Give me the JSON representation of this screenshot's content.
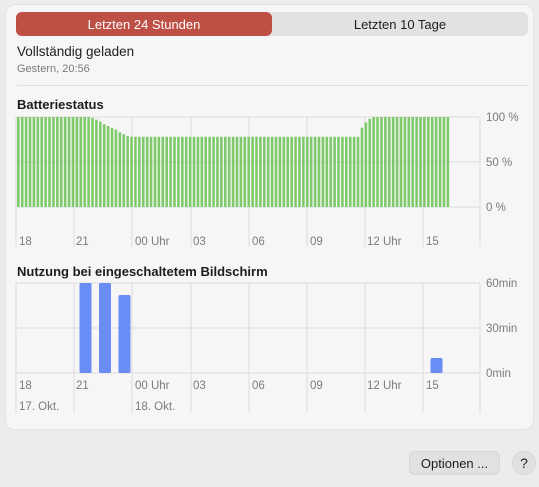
{
  "tabs": [
    {
      "label": "Letzten 24 Stunden",
      "active": true
    },
    {
      "label": "Letzten 10 Tage",
      "active": false
    }
  ],
  "status": {
    "title": "Vollständig geladen",
    "time": "Gestern, 20:56"
  },
  "colors": {
    "active_tab": "#be4f45",
    "battery": "#7ec96a",
    "screen": "#6a8df5",
    "grid": "#dcdcdc",
    "text_muted": "#7b7b7b"
  },
  "chart_data": [
    {
      "type": "bar",
      "title": "Batteriestatus",
      "ylim": [
        0,
        100
      ],
      "y_ticks": [
        "100 %",
        "50 %",
        "0 %"
      ],
      "x_labels": [
        "18",
        "21",
        "00 Uhr",
        "03",
        "06",
        "09",
        "12 Uhr",
        "15"
      ],
      "values": [
        100,
        100,
        100,
        100,
        100,
        100,
        100,
        100,
        100,
        100,
        100,
        100,
        100,
        100,
        100,
        100,
        100,
        100,
        100,
        99,
        97,
        95,
        92,
        90,
        88,
        86,
        83,
        81,
        79,
        78,
        78,
        78,
        78,
        78,
        78,
        78,
        78,
        78,
        78,
        78,
        78,
        78,
        78,
        78,
        78,
        78,
        78,
        78,
        78,
        78,
        78,
        78,
        78,
        78,
        78,
        78,
        78,
        78,
        78,
        78,
        78,
        78,
        78,
        78,
        78,
        78,
        78,
        78,
        78,
        78,
        78,
        78,
        78,
        78,
        78,
        78,
        78,
        78,
        78,
        78,
        78,
        78,
        78,
        78,
        78,
        78,
        78,
        78,
        88,
        94,
        98,
        100,
        100,
        100,
        100,
        100,
        100,
        100,
        100,
        100,
        100,
        100,
        100,
        100,
        100,
        100,
        100,
        100,
        100,
        100,
        100
      ]
    },
    {
      "type": "bar",
      "title": "Nutzung bei eingeschaltetem Bildschirm",
      "ylim": [
        0,
        60
      ],
      "y_ticks": [
        "60min",
        "30min",
        "0min"
      ],
      "x_labels": [
        "18",
        "21",
        "00 Uhr",
        "03",
        "06",
        "09",
        "12 Uhr",
        "15"
      ],
      "date_labels": [
        "17. Okt.",
        "18. Okt."
      ],
      "values": [
        0,
        0,
        0,
        60,
        60,
        52,
        0,
        0,
        0,
        0,
        0,
        0,
        0,
        0,
        0,
        0,
        0,
        0,
        0,
        0,
        0,
        10
      ]
    }
  ],
  "buttons": {
    "options": "Optionen ...",
    "help": "?"
  }
}
